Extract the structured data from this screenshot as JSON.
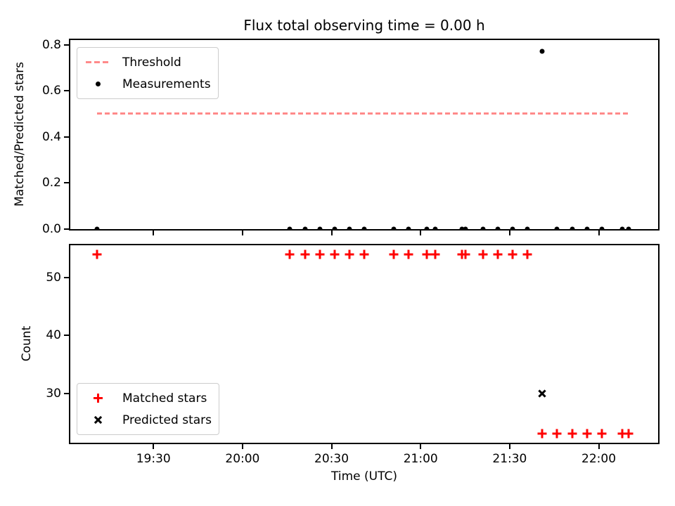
{
  "title": "Flux total observing time = 0.00 h",
  "xlabel": "Time (UTC)",
  "colors": {
    "threshold": "#ff8a8a",
    "matched": "#ff0000",
    "measurements": "#000000",
    "predicted": "#000000",
    "axes": "#000000",
    "legend_border": "#cccccc"
  },
  "legends": {
    "top": [
      {
        "marker": "dash",
        "label": "Threshold"
      },
      {
        "marker": "dot",
        "label": "Measurements"
      }
    ],
    "bottom": [
      {
        "marker": "plus",
        "label": "Matched stars"
      },
      {
        "marker": "x",
        "label": "Predicted stars"
      }
    ]
  },
  "chart_data": [
    {
      "type": "scatter",
      "subplot": "top",
      "title": "Flux total observing time = 0.00 h",
      "ylabel": "Matched/Predicted stars",
      "ylim": [
        0,
        0.82
      ],
      "yticks": [
        "0.0",
        "0.2",
        "0.4",
        "0.6",
        "0.8"
      ],
      "xlim": [
        "19:02",
        "22:20"
      ],
      "xticks": [
        "19:30",
        "20:00",
        "20:30",
        "21:00",
        "21:30",
        "22:00"
      ],
      "xtick_labels": false,
      "grid": false,
      "legend_position": "upper left",
      "threshold": {
        "y": 0.5,
        "x_start": "19:11",
        "x_end": "22:10",
        "color": "#ff8a8a",
        "style": "dashed"
      },
      "series": [
        {
          "name": "Measurements",
          "marker": "dot",
          "color": "#000000",
          "points": [
            [
              "19:11",
              0.0
            ],
            [
              "20:16",
              0.0
            ],
            [
              "20:21",
              0.0
            ],
            [
              "20:26",
              0.0
            ],
            [
              "20:31",
              0.0
            ],
            [
              "20:36",
              0.0
            ],
            [
              "20:41",
              0.0
            ],
            [
              "20:51",
              0.0
            ],
            [
              "20:56",
              0.0
            ],
            [
              "21:02",
              0.0
            ],
            [
              "21:05",
              0.0
            ],
            [
              "21:14",
              0.0
            ],
            [
              "21:15",
              0.0
            ],
            [
              "21:21",
              0.0
            ],
            [
              "21:26",
              0.0
            ],
            [
              "21:31",
              0.0
            ],
            [
              "21:36",
              0.0
            ],
            [
              "21:41",
              0.77
            ],
            [
              "21:46",
              0.0
            ],
            [
              "21:51",
              0.0
            ],
            [
              "21:56",
              0.0
            ],
            [
              "22:01",
              0.0
            ],
            [
              "22:08",
              0.0
            ],
            [
              "22:10",
              0.0
            ]
          ]
        }
      ]
    },
    {
      "type": "scatter",
      "subplot": "bottom",
      "ylabel": "Count",
      "xlabel": "Time (UTC)",
      "ylim": [
        21.45,
        55.55
      ],
      "yticks": [
        "30",
        "40",
        "50"
      ],
      "xlim": [
        "19:02",
        "22:20"
      ],
      "xticks": [
        "19:30",
        "20:00",
        "20:30",
        "21:00",
        "21:30",
        "22:00"
      ],
      "xtick_labels": true,
      "grid": false,
      "legend_position": "lower left",
      "series": [
        {
          "name": "Matched stars",
          "marker": "plus",
          "color": "#ff0000",
          "points": [
            [
              "19:11",
              54
            ],
            [
              "20:16",
              54
            ],
            [
              "20:21",
              54
            ],
            [
              "20:26",
              54
            ],
            [
              "20:31",
              54
            ],
            [
              "20:36",
              54
            ],
            [
              "20:41",
              54
            ],
            [
              "20:51",
              54
            ],
            [
              "20:56",
              54
            ],
            [
              "21:02",
              54
            ],
            [
              "21:05",
              54
            ],
            [
              "21:14",
              54
            ],
            [
              "21:15",
              54
            ],
            [
              "21:21",
              54
            ],
            [
              "21:26",
              54
            ],
            [
              "21:31",
              54
            ],
            [
              "21:36",
              54
            ],
            [
              "21:41",
              23
            ],
            [
              "21:46",
              23
            ],
            [
              "21:51",
              23
            ],
            [
              "21:56",
              23
            ],
            [
              "22:01",
              23
            ],
            [
              "22:08",
              23
            ],
            [
              "22:10",
              23
            ]
          ]
        },
        {
          "name": "Predicted stars",
          "marker": "x",
          "color": "#000000",
          "points": [
            [
              "21:41",
              30
            ]
          ]
        }
      ]
    }
  ]
}
